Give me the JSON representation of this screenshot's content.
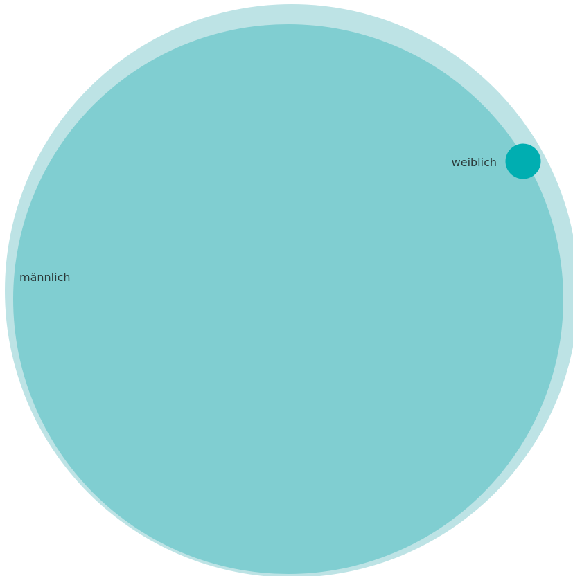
{
  "chart_data": {
    "type": "bubble",
    "title": "",
    "series": [
      {
        "name": "männlich",
        "relative_size": 1.0,
        "color": "#80ced1"
      },
      {
        "name": "weiblich",
        "relative_size": 0.064,
        "color": "#00aeb1"
      }
    ],
    "container_color": "#bde3e5",
    "legend": "none",
    "grid": false
  }
}
